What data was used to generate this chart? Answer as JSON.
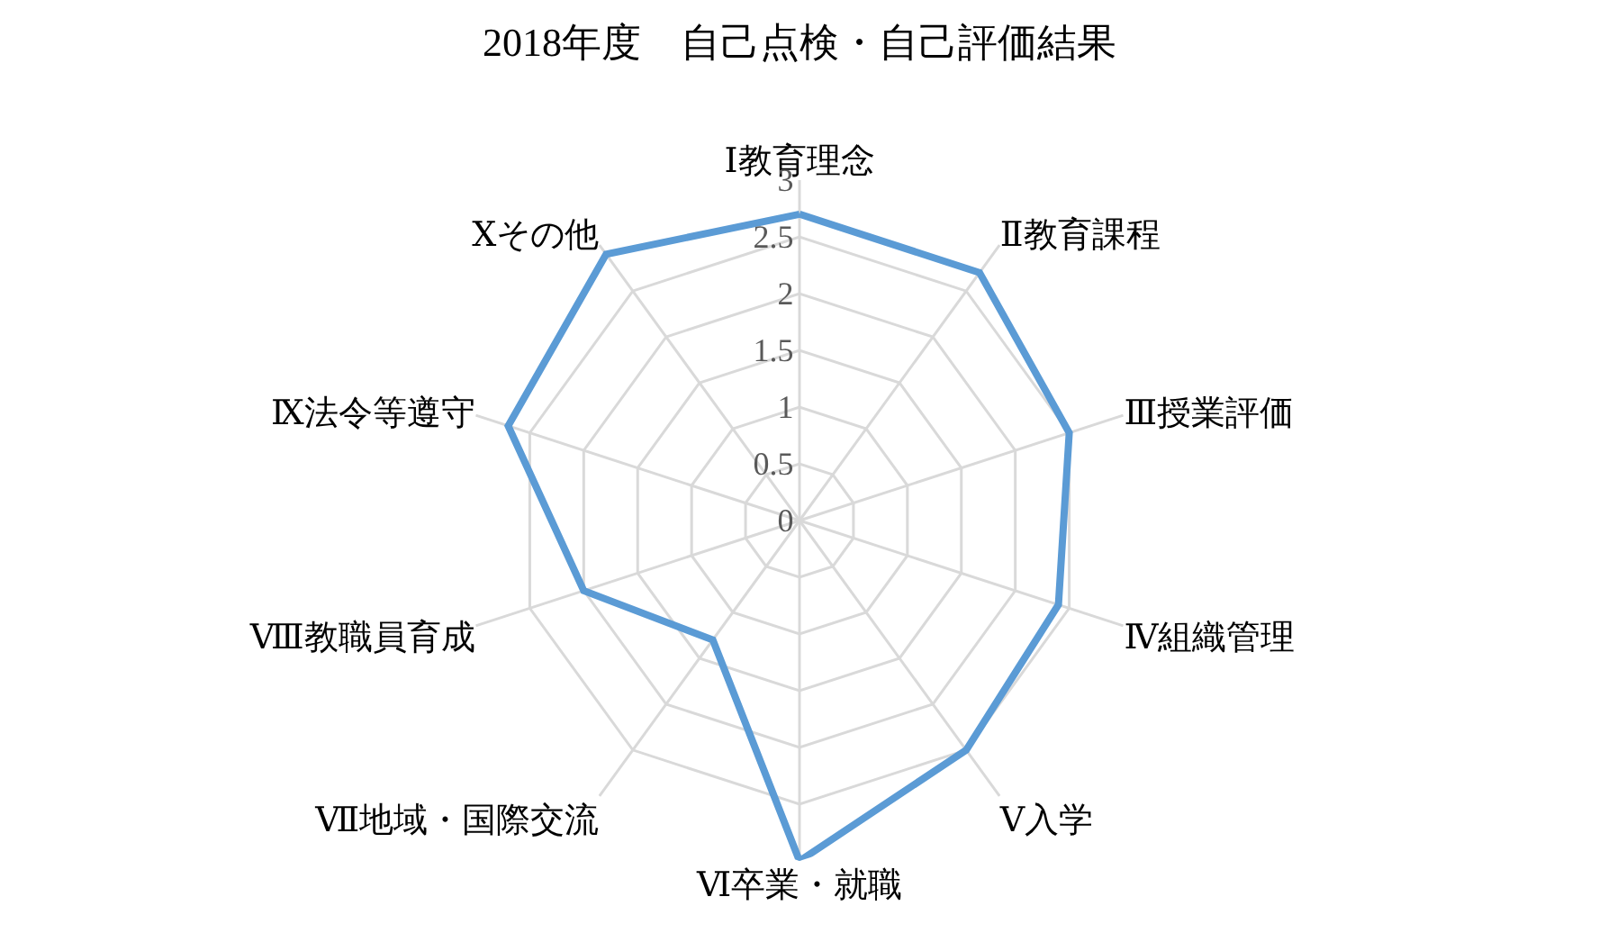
{
  "chart_data": {
    "type": "radar",
    "title": "2018年度　自己点検・自己評価結果",
    "categories": [
      "Ⅰ教育理念",
      "Ⅱ教育課程",
      "Ⅲ授業評価",
      "Ⅳ組織管理",
      "Ⅴ入学",
      "Ⅵ卒業・就職",
      "Ⅶ地域・国際交流",
      "Ⅷ教職員育成",
      "Ⅸ法令等遵守",
      "Ⅹその他"
    ],
    "series": [
      {
        "color": "#5b9bd5",
        "values": [
          2.7,
          2.7,
          2.5,
          2.4,
          2.5,
          3.0,
          1.3,
          2.0,
          2.7,
          2.9
        ]
      }
    ],
    "ylim": [
      0,
      3
    ],
    "yticks": [
      0,
      0.5,
      1,
      1.5,
      2,
      2.5,
      3
    ],
    "grid": true,
    "marker": "none",
    "line_style": "solid"
  }
}
